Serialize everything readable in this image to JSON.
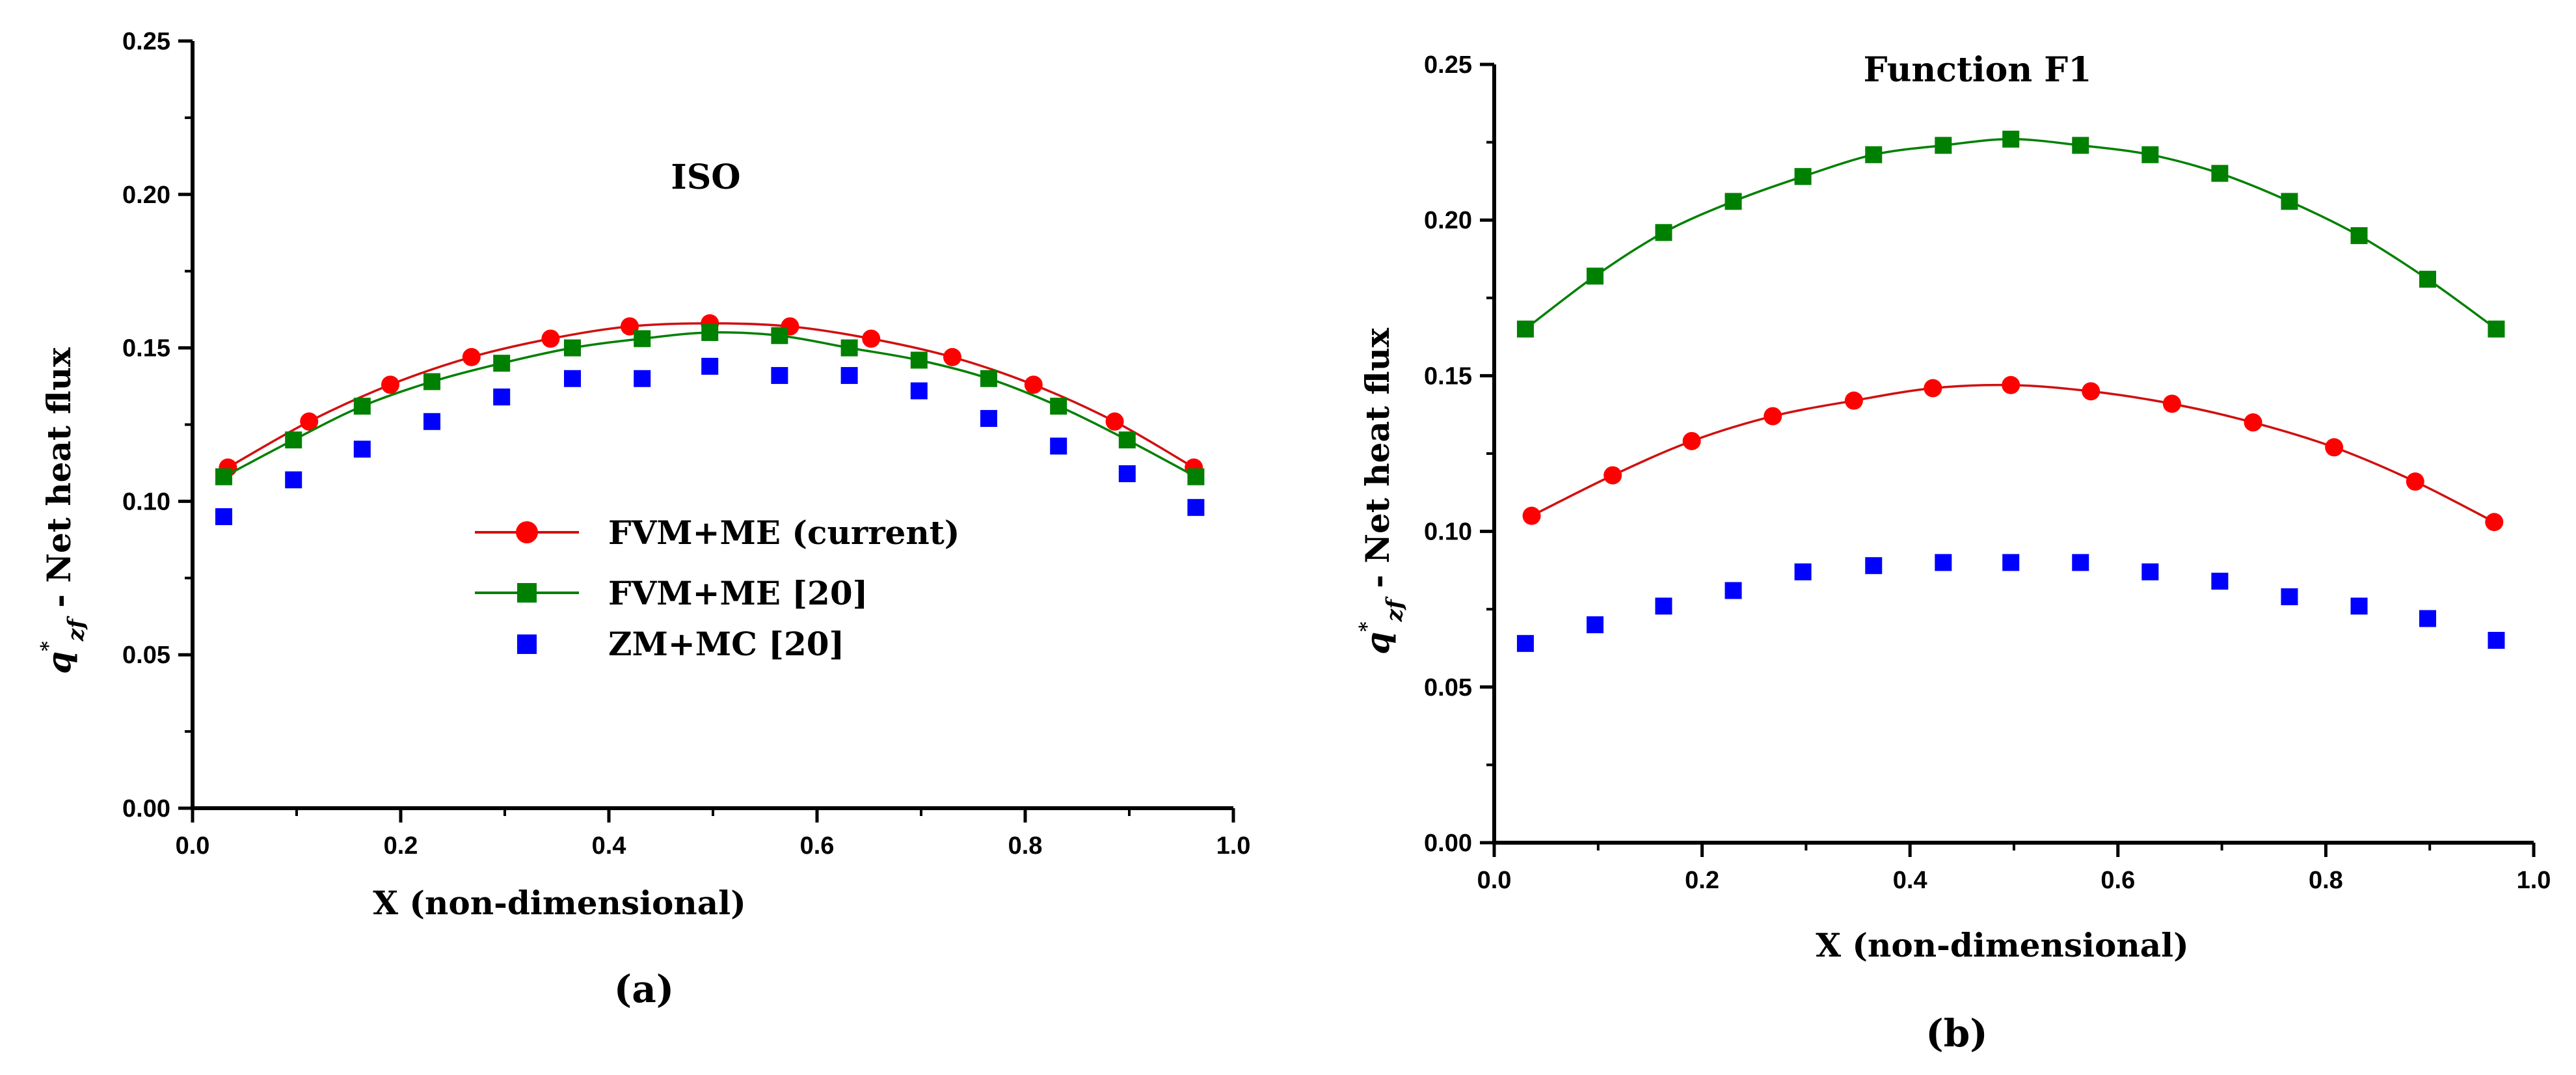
{
  "chart_data": [
    {
      "type": "line",
      "panel": "(a)",
      "title": "ISO",
      "xlabel": "X (non-dimensional)",
      "ylabel_main": "q",
      "ylabel_sup": "*",
      "ylabel_sub": "zf",
      "ylabel_rest": " - Net heat flux",
      "xlim": [
        0.0,
        1.0
      ],
      "ylim": [
        0.0,
        0.25
      ],
      "xticks": [
        "0.0",
        "0.2",
        "0.4",
        "0.6",
        "0.8",
        "1.0"
      ],
      "yticks": [
        "0.00",
        "0.05",
        "0.10",
        "0.15",
        "0.20",
        "0.25"
      ],
      "legend_position": "center",
      "series": [
        {
          "name": "FVM+ME (current)",
          "marker": "circle",
          "line": true,
          "color": "#ff0000",
          "line_color": "#d01010",
          "x": [
            0.034,
            0.112,
            0.19,
            0.268,
            0.344,
            0.42,
            0.497,
            0.574,
            0.652,
            0.73,
            0.808,
            0.886,
            0.962
          ],
          "y": [
            0.111,
            0.126,
            0.138,
            0.147,
            0.153,
            0.157,
            0.158,
            0.157,
            0.153,
            0.147,
            0.138,
            0.126,
            0.111
          ]
        },
        {
          "name": "FVM+ME [20]",
          "marker": "square",
          "line": true,
          "color": "#008000",
          "line_color": "#008000",
          "x": [
            0.03,
            0.097,
            0.163,
            0.23,
            0.297,
            0.365,
            0.432,
            0.497,
            0.564,
            0.631,
            0.698,
            0.765,
            0.832,
            0.898,
            0.964
          ],
          "y": [
            0.108,
            0.12,
            0.131,
            0.139,
            0.145,
            0.15,
            0.153,
            0.155,
            0.154,
            0.15,
            0.146,
            0.14,
            0.131,
            0.12,
            0.108
          ]
        },
        {
          "name": "ZM+MC [20]",
          "marker": "square",
          "line": false,
          "color": "#0000ff",
          "x": [
            0.03,
            0.097,
            0.163,
            0.23,
            0.297,
            0.365,
            0.432,
            0.497,
            0.564,
            0.631,
            0.698,
            0.765,
            0.832,
            0.898,
            0.964
          ],
          "y": [
            0.095,
            0.107,
            0.117,
            0.126,
            0.134,
            0.14,
            0.14,
            0.144,
            0.141,
            0.141,
            0.136,
            0.127,
            0.118,
            0.109,
            0.098
          ]
        }
      ]
    },
    {
      "type": "line",
      "panel": "(b)",
      "title": "Function F1",
      "xlabel": "X (non-dimensional)",
      "ylabel_main": "q",
      "ylabel_sup": "*",
      "ylabel_sub": "zf",
      "ylabel_rest": " - Net heat flux",
      "xlim": [
        0.0,
        1.0
      ],
      "ylim": [
        0.0,
        0.25
      ],
      "xticks": [
        "0.0",
        "0.2",
        "0.4",
        "0.6",
        "0.8",
        "1.0"
      ],
      "yticks": [
        "0.00",
        "0.05",
        "0.10",
        "0.15",
        "0.20",
        "0.25"
      ],
      "series": [
        {
          "name": "FVM+ME (current)",
          "marker": "circle",
          "line": true,
          "color": "#ff0000",
          "line_color": "#d01010",
          "x": [
            0.036,
            0.114,
            0.19,
            0.268,
            0.346,
            0.422,
            0.497,
            0.574,
            0.652,
            0.73,
            0.808,
            0.886,
            0.962
          ],
          "y": [
            0.105,
            0.118,
            0.129,
            0.137,
            0.142,
            0.146,
            0.147,
            0.145,
            0.141,
            0.135,
            0.127,
            0.116,
            0.103
          ]
        },
        {
          "name": "FVM+ME [20]",
          "marker": "square",
          "line": true,
          "color": "#008000",
          "line_color": "#008000",
          "x": [
            0.03,
            0.097,
            0.163,
            0.23,
            0.297,
            0.365,
            0.432,
            0.497,
            0.564,
            0.631,
            0.698,
            0.765,
            0.832,
            0.898,
            0.964
          ],
          "y": [
            0.165,
            0.182,
            0.196,
            0.206,
            0.214,
            0.221,
            0.224,
            0.226,
            0.224,
            0.221,
            0.215,
            0.206,
            0.195,
            0.181,
            0.165
          ]
        },
        {
          "name": "ZM+MC [20]",
          "marker": "square",
          "line": false,
          "color": "#0000ff",
          "x": [
            0.03,
            0.097,
            0.163,
            0.23,
            0.297,
            0.365,
            0.432,
            0.497,
            0.564,
            0.631,
            0.698,
            0.765,
            0.832,
            0.898,
            0.964
          ],
          "y": [
            0.064,
            0.07,
            0.076,
            0.081,
            0.087,
            0.089,
            0.09,
            0.09,
            0.09,
            0.087,
            0.084,
            0.079,
            0.076,
            0.072,
            0.065
          ]
        }
      ]
    }
  ]
}
